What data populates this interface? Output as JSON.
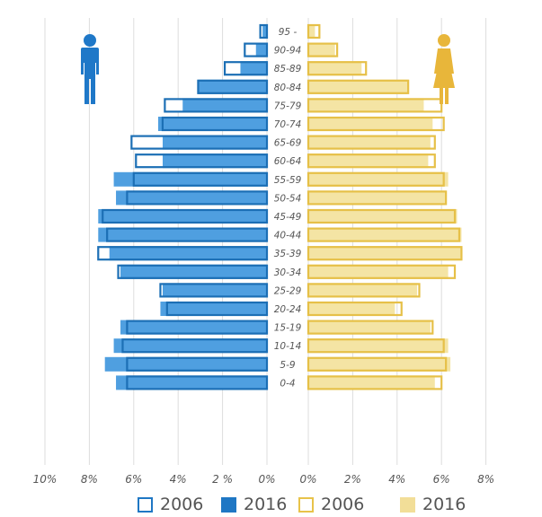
{
  "chart_data": {
    "type": "bar",
    "orientation": "horizontal-population-pyramid",
    "age_groups": [
      "0-4",
      "5-9",
      "10-14",
      "15-19",
      "20-24",
      "25-29",
      "30-34",
      "35-39",
      "40-44",
      "45-49",
      "50-54",
      "55-59",
      "60-64",
      "65-69",
      "70-74",
      "75-79",
      "80-84",
      "85-89",
      "90-94",
      "95 -"
    ],
    "age_labels_shown": [
      "0-4",
      "5-9",
      "10-14",
      "15-19",
      "20-24",
      "25-29",
      "30-34",
      "35-39",
      "40-44",
      "45-49",
      "50-54",
      "55-59",
      "60-64",
      "65-69",
      "70-74",
      "75-79",
      "80-84",
      "85-89",
      "90-94",
      "95 -"
    ],
    "male": {
      "axis_ticks": [
        "10%",
        "8%",
        "6%",
        "4%",
        "2 %",
        "0%"
      ],
      "axis_values": [
        10,
        8,
        6,
        4,
        2,
        0
      ],
      "series": [
        {
          "name": "2006",
          "values": [
            6.3,
            6.3,
            6.5,
            6.3,
            4.5,
            4.8,
            6.7,
            7.6,
            7.2,
            7.4,
            6.3,
            6.0,
            5.9,
            6.1,
            4.7,
            4.6,
            3.1,
            1.9,
            1.0,
            0.3
          ]
        },
        {
          "name": "2016",
          "values": [
            6.8,
            7.3,
            6.9,
            6.6,
            4.8,
            4.7,
            6.6,
            7.1,
            7.6,
            7.6,
            6.8,
            6.9,
            4.7,
            4.7,
            4.9,
            3.8,
            3.1,
            1.2,
            0.5,
            0.2
          ]
        }
      ]
    },
    "female": {
      "axis_ticks": [
        "0%",
        "2%",
        "4%",
        "6%",
        "8%"
      ],
      "axis_values": [
        0,
        2,
        4,
        6,
        8
      ],
      "series": [
        {
          "name": "2006",
          "values": [
            6.0,
            6.2,
            6.1,
            5.6,
            4.2,
            5.0,
            6.6,
            6.9,
            6.8,
            6.6,
            6.2,
            6.1,
            5.7,
            5.7,
            6.1,
            6.0,
            4.5,
            2.6,
            1.3,
            0.5
          ]
        },
        {
          "name": "2016",
          "values": [
            5.7,
            6.4,
            6.3,
            5.5,
            3.9,
            4.9,
            6.3,
            6.9,
            6.9,
            6.7,
            6.2,
            6.3,
            5.4,
            5.5,
            5.6,
            5.2,
            4.5,
            2.4,
            1.2,
            0.3
          ]
        }
      ]
    },
    "legend": [
      {
        "label": "2006",
        "style": "outline",
        "color": "#1f77c4"
      },
      {
        "label": "2016",
        "style": "filled",
        "color": "#1f77c4"
      },
      {
        "label": "2006",
        "style": "outline",
        "color": "#e8c34a"
      },
      {
        "label": "2016",
        "style": "filled",
        "color": "#f2de98"
      }
    ],
    "colors": {
      "male_2016_fill": "#4f9fe0",
      "male_2006_outline": "#1c6fb5",
      "male_light": "#9cc8ee",
      "female_2016_fill": "#f4e4a4",
      "female_2006_outline": "#e6c048",
      "female_light": "#fbf1cc",
      "male_icon": "#1f78c8",
      "female_icon": "#e8b63a",
      "grid": "#dddddd",
      "label_text": "#555555"
    },
    "icons": [
      "male-icon",
      "female-icon"
    ],
    "grid": true,
    "legend_position": "bottom"
  }
}
